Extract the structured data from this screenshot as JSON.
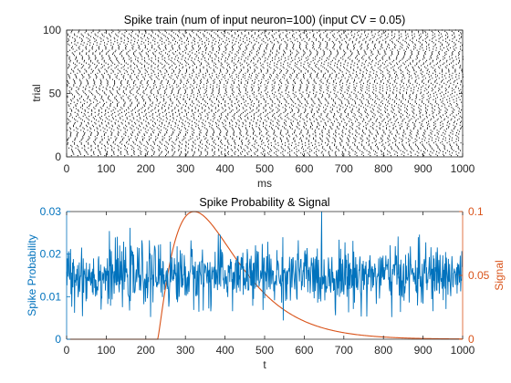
{
  "chart_data": [
    {
      "type": "scatter",
      "title": "Spike train (num of input neuron=100) (input CV = 0.05)",
      "xlabel": "ms",
      "ylabel": "trial",
      "xlim": [
        0,
        1000
      ],
      "ylim": [
        0,
        100
      ],
      "xticks": [
        "0",
        "100",
        "200",
        "300",
        "400",
        "500",
        "600",
        "700",
        "800",
        "900",
        "1000"
      ],
      "yticks": [
        "0",
        "50",
        "100"
      ],
      "trials": 100,
      "mean_isi_ms": 17,
      "isi_cv": 0.05,
      "marker_color": "#000000"
    },
    {
      "type": "line",
      "title": "Spike Probability & Signal",
      "xlabel": "t",
      "xlim": [
        0,
        1000
      ],
      "xticks": [
        "0",
        "100",
        "200",
        "300",
        "400",
        "500",
        "600",
        "700",
        "800",
        "900",
        "1000"
      ],
      "left_axis": {
        "label": "Spike Probability",
        "ylim": [
          0,
          0.03
        ],
        "yticks": [
          "0",
          "0.01",
          "0.02",
          "0.03"
        ],
        "color": "#0072BD"
      },
      "right_axis": {
        "label": "Signal",
        "ylim": [
          0,
          0.1
        ],
        "yticks": [
          "0",
          "0.05",
          "0.1"
        ],
        "color": "#D95319"
      },
      "series": [
        {
          "axis": "left",
          "color": "#0072BD",
          "samples": 1000,
          "mean": 0.015,
          "std": 0.0035,
          "min": 0.003,
          "max": 0.03
        },
        {
          "axis": "right",
          "color": "#D95319",
          "onset": 230,
          "peak_x": 322,
          "peak_y": 0.1,
          "shape": "gamma-like rise then slow decay to 0 near 950"
        }
      ]
    }
  ]
}
